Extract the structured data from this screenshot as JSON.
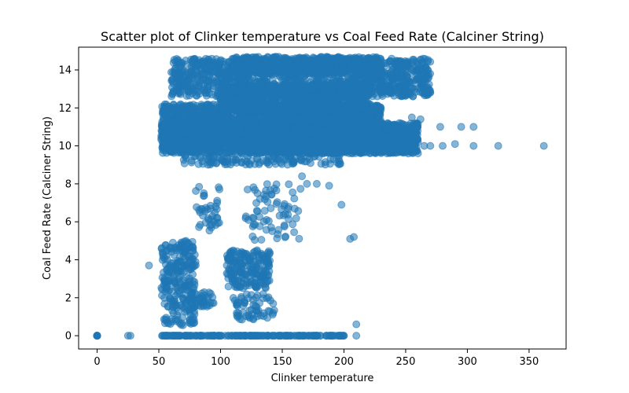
{
  "chart_data": {
    "type": "scatter",
    "title": "Scatter plot of Clinker temperature vs Coal Feed Rate (Calciner String)",
    "xlabel": "Clinker temperature",
    "ylabel": "Coal Feed Rate (Calciner String)",
    "xlim": [
      -15,
      380
    ],
    "ylim": [
      -0.7,
      15.2
    ],
    "xticks": [
      0,
      50,
      100,
      150,
      200,
      250,
      300,
      350
    ],
    "yticks": [
      0,
      2,
      4,
      6,
      8,
      10,
      12,
      14
    ],
    "grid": false,
    "legend": "none",
    "series": [
      {
        "color": "#1f77b4",
        "alpha": 0.55,
        "clusters": [
          {
            "x": [
              52,
              260
            ],
            "y": [
              9.6,
              11.2
            ],
            "n": 2600
          },
          {
            "x": [
              52,
              230
            ],
            "y": [
              10.6,
              12.2
            ],
            "n": 1400
          },
          {
            "x": [
              60,
              270
            ],
            "y": [
              12.6,
              14.6
            ],
            "n": 1300
          },
          {
            "x": [
              110,
              230
            ],
            "y": [
              13.8,
              14.7
            ],
            "n": 600
          },
          {
            "x": [
              100,
              220
            ],
            "y": [
              11.8,
              13.2
            ],
            "n": 900
          },
          {
            "x": [
              52,
              80
            ],
            "y": [
              0.5,
              5.0
            ],
            "n": 260
          },
          {
            "x": [
              105,
              140
            ],
            "y": [
              2.5,
              4.5
            ],
            "n": 200
          },
          {
            "x": [
              70,
              200
            ],
            "y": [
              9.0,
              9.5
            ],
            "n": 120
          },
          {
            "x": [
              120,
              165
            ],
            "y": [
              5.0,
              8.0
            ],
            "n": 70
          },
          {
            "x": [
              75,
              95
            ],
            "y": [
              1.5,
              2.3
            ],
            "n": 40
          },
          {
            "x": [
              110,
              145
            ],
            "y": [
              0.8,
              2.2
            ],
            "n": 60
          },
          {
            "x": [
              80,
              100
            ],
            "y": [
              5.5,
              8.0
            ],
            "n": 40
          }
        ],
        "zero_line": {
          "x": [
            52,
            200
          ],
          "y": 0,
          "n": 200
        },
        "points": [
          [
            0,
            0
          ],
          [
            25,
            0
          ],
          [
            27,
            0
          ],
          [
            157,
            0
          ],
          [
            178,
            0
          ],
          [
            195,
            0
          ],
          [
            197,
            0
          ],
          [
            210,
            0
          ],
          [
            210,
            0.6
          ],
          [
            205,
            5.1
          ],
          [
            208,
            5.2
          ],
          [
            198,
            6.9
          ],
          [
            42,
            3.7
          ],
          [
            166,
            8.4
          ],
          [
            170,
            8.0
          ],
          [
            178,
            8.0
          ],
          [
            188,
            7.9
          ],
          [
            265,
            10.0
          ],
          [
            270,
            10.0
          ],
          [
            280,
            10.0
          ],
          [
            290,
            10.1
          ],
          [
            305,
            10.0
          ],
          [
            325,
            10.0
          ],
          [
            362,
            10.0
          ],
          [
            278,
            11.0
          ],
          [
            295,
            11.0
          ],
          [
            305,
            11.0
          ],
          [
            255,
            11.5
          ],
          [
            262,
            11.4
          ],
          [
            255,
            14.0
          ],
          [
            262,
            14.0
          ],
          [
            268,
            14.0
          ]
        ]
      }
    ]
  }
}
